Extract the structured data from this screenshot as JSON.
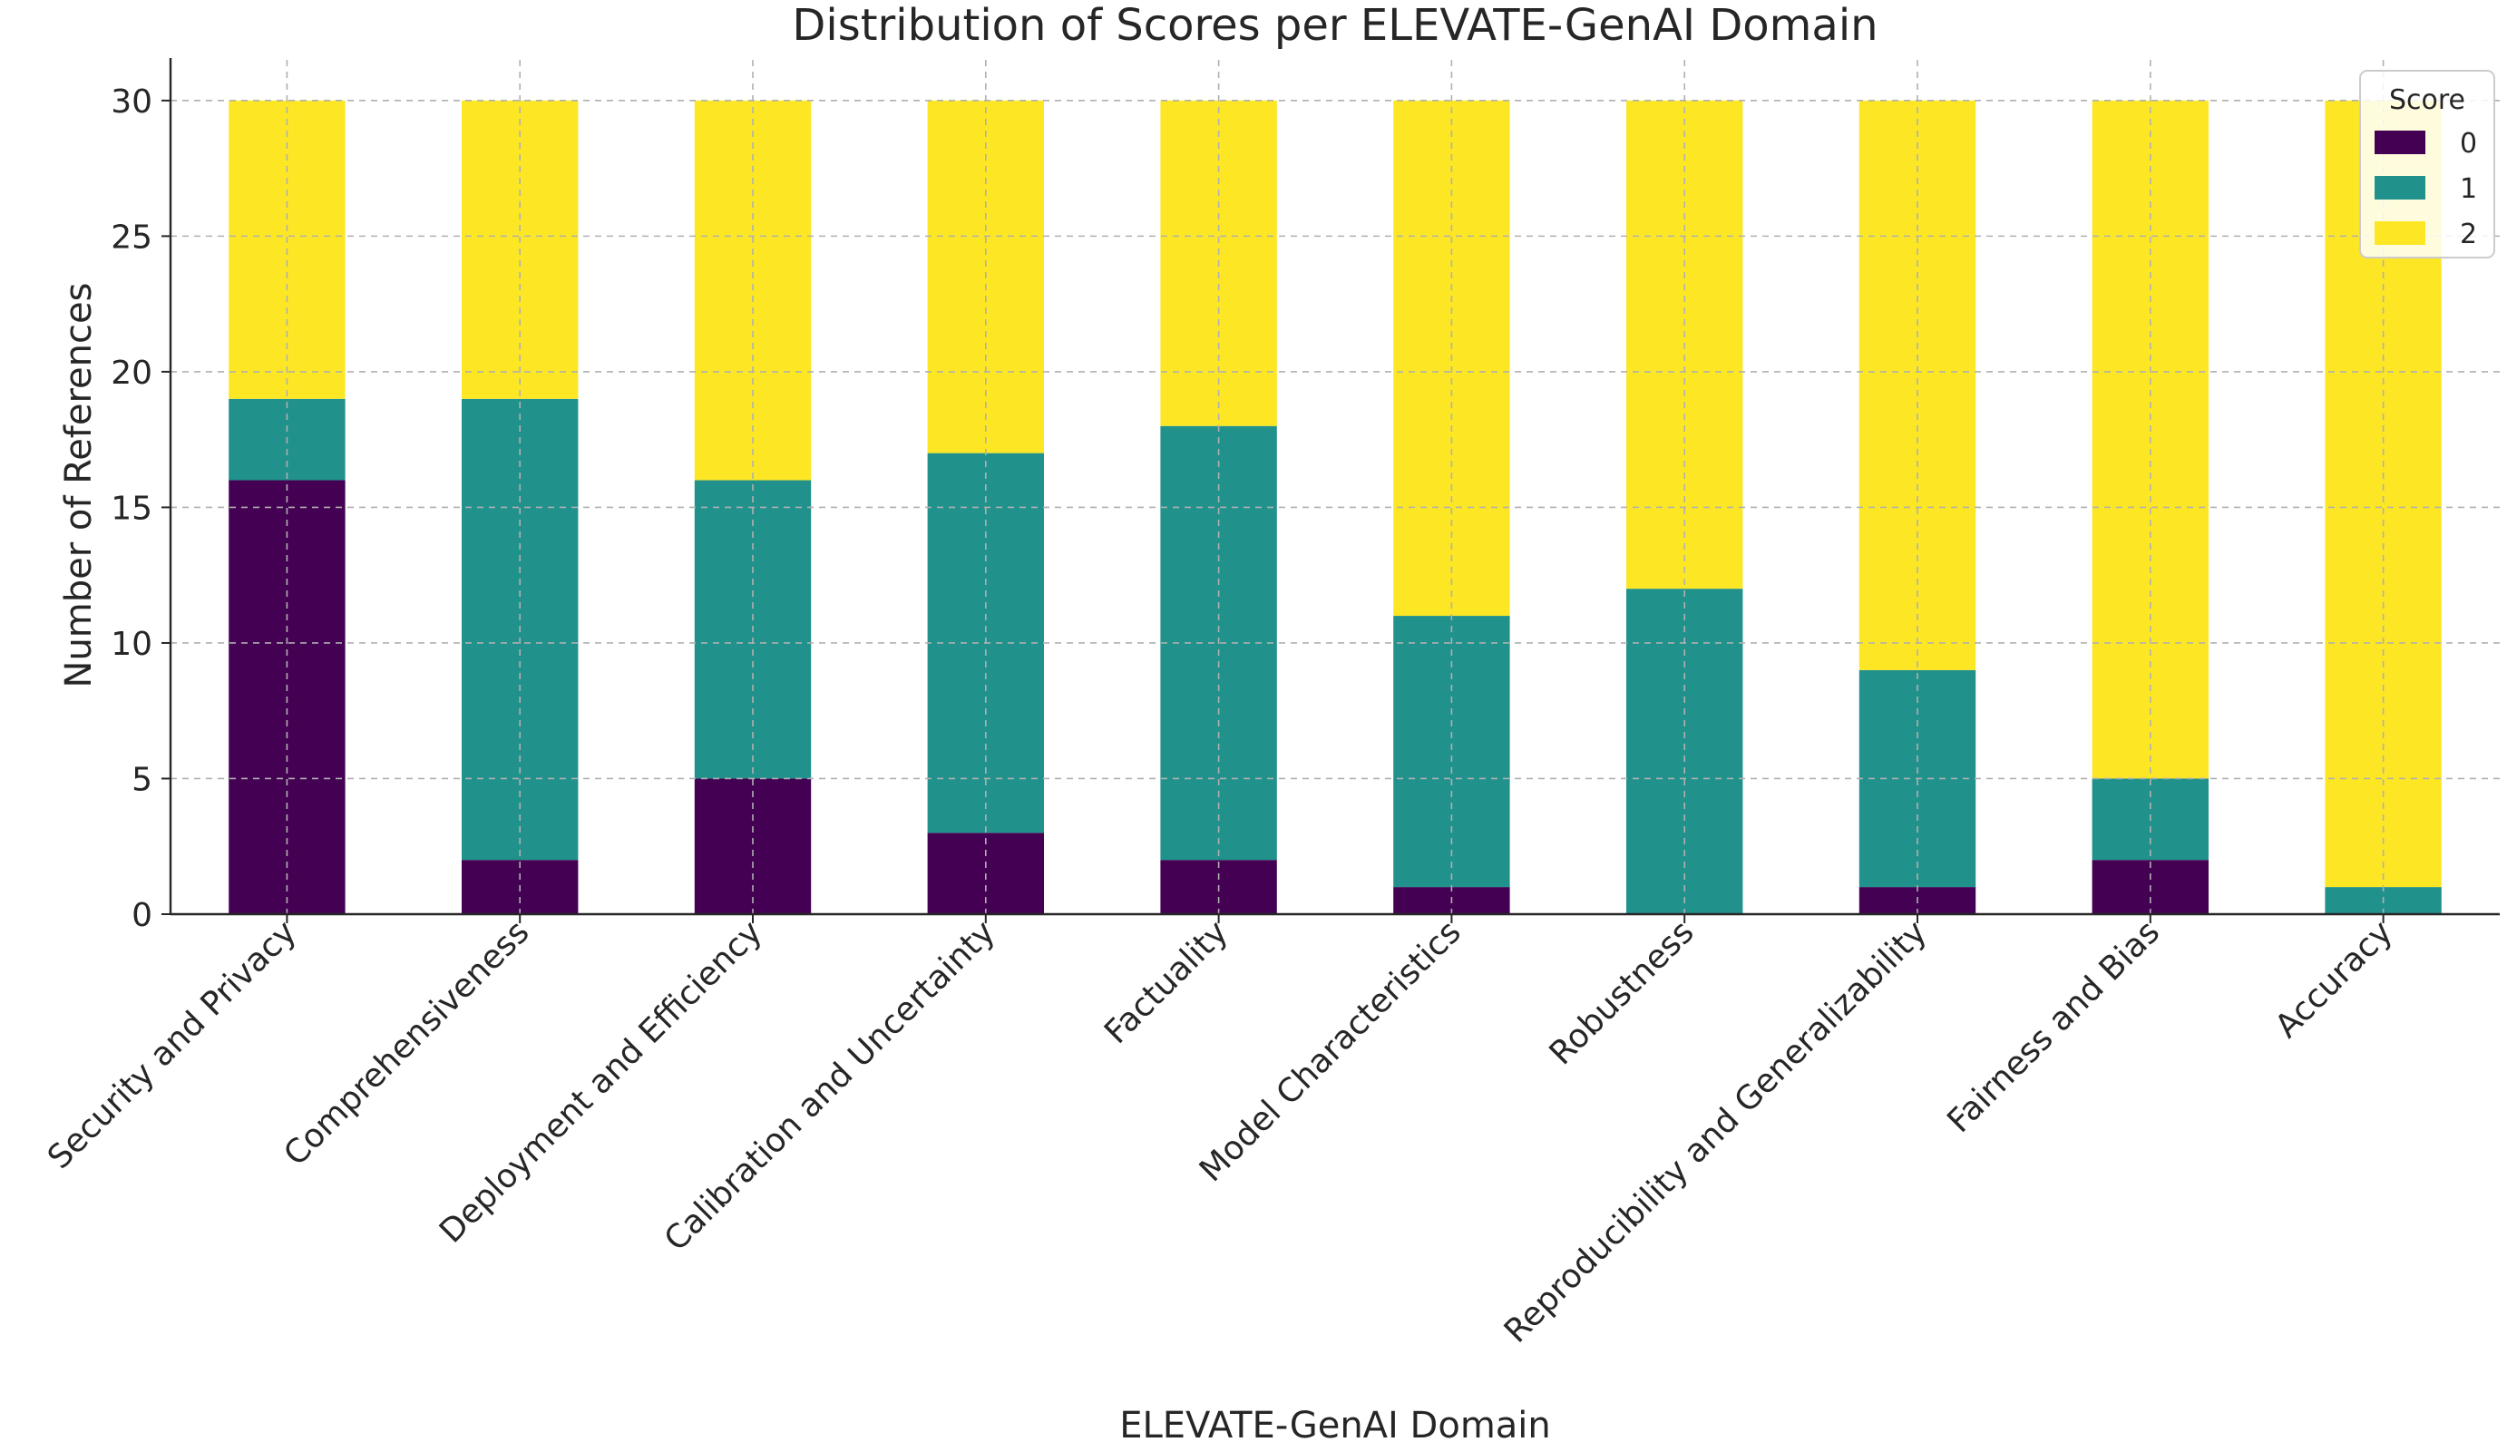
{
  "chart_data": {
    "type": "bar",
    "stacked": true,
    "title": "Distribution of Scores per ELEVATE-GenAI Domain",
    "xlabel": "ELEVATE-GenAI Domain",
    "ylabel": "Number of References",
    "ylim": [
      0,
      31.5
    ],
    "yticks": [
      "0",
      "5",
      "10",
      "15",
      "20",
      "25",
      "30"
    ],
    "grid": true,
    "categories": [
      "Security and Privacy",
      "Comprehensiveness",
      "Deployment and Efficiency",
      "Calibration and Uncertainty",
      "Factuality",
      "Model Characteristics",
      "Robustness",
      "Reproducibility and Generalizability",
      "Fairness and Bias",
      "Accuracy"
    ],
    "series": [
      {
        "name": "0",
        "color": "#440154",
        "values": [
          16,
          2,
          5,
          3,
          2,
          1,
          0,
          1,
          2,
          0
        ]
      },
      {
        "name": "1",
        "color": "#21918c",
        "values": [
          3,
          17,
          11,
          14,
          16,
          10,
          12,
          8,
          3,
          1
        ]
      },
      {
        "name": "2",
        "color": "#fde725",
        "values": [
          11,
          11,
          14,
          13,
          12,
          19,
          18,
          21,
          25,
          29
        ]
      }
    ],
    "legend": {
      "title": "Score",
      "placement": "top-right"
    }
  }
}
